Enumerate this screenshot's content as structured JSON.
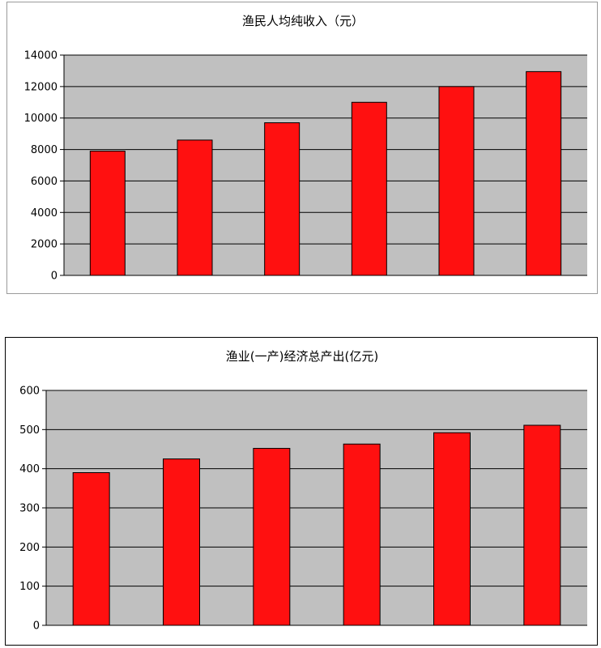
{
  "colors": {
    "bar": "#ff1010",
    "plot_bg": "#c0c0c0",
    "grid": "#000000"
  },
  "chart_data": [
    {
      "type": "bar",
      "title": "渔民人均纯收入（元）",
      "xlabel": "",
      "ylabel": "",
      "categories": [
        "",
        "",
        "",
        "",
        "",
        ""
      ],
      "values": [
        7900,
        8600,
        9700,
        11000,
        12000,
        12950
      ],
      "ylim": [
        0,
        14000
      ],
      "yticks": [
        "0",
        "2000",
        "4000",
        "6000",
        "8000",
        "10000",
        "12000",
        "14000"
      ],
      "grid": true,
      "legend": "none"
    },
    {
      "type": "bar",
      "title": "渔业(一产)经济总产出(亿元)",
      "xlabel": "",
      "ylabel": "",
      "categories": [
        "",
        "",
        "",
        "",
        "",
        ""
      ],
      "values": [
        390,
        425,
        452,
        463,
        492,
        511
      ],
      "ylim": [
        0,
        600
      ],
      "yticks": [
        "0",
        "100",
        "200",
        "300",
        "400",
        "500",
        "600"
      ],
      "grid": true,
      "legend": "none"
    }
  ]
}
